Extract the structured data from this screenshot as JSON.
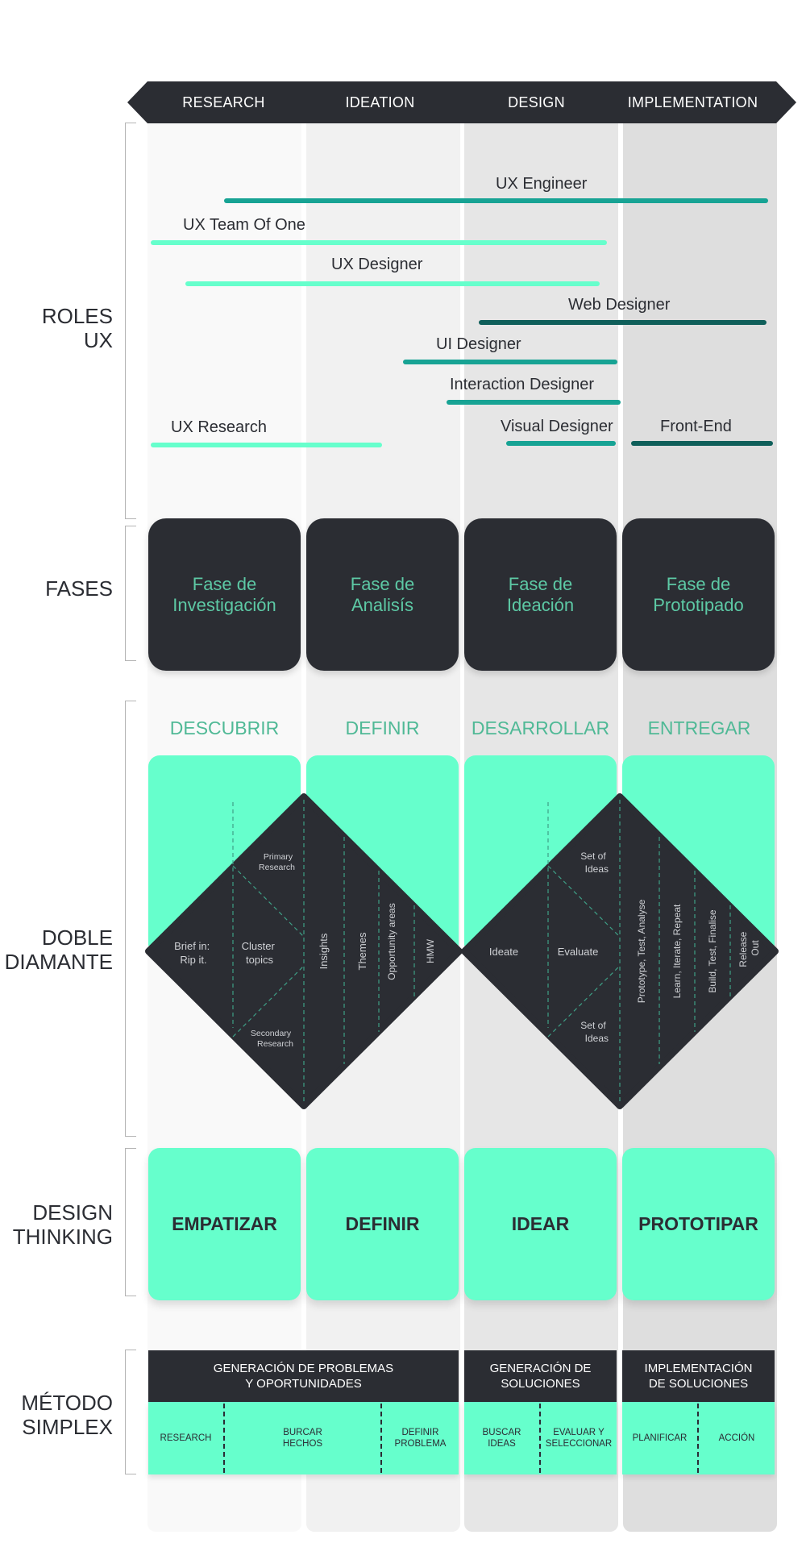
{
  "phases": [
    "RESEARCH",
    "IDEATION",
    "DESIGN",
    "IMPLEMENTATION"
  ],
  "sections": {
    "roles": [
      "ROLES",
      "UX"
    ],
    "fases": [
      "FASES"
    ],
    "doble": [
      "DOBLE",
      "DIAMANTE"
    ],
    "design": [
      "DESIGN",
      "THINKING"
    ],
    "metodo": [
      "MÉTODO",
      "SIMPLEX"
    ]
  },
  "roles": [
    {
      "label": "UX Engineer",
      "color": "#17a394"
    },
    {
      "label": "UX Team Of One",
      "color": "#66ffcc"
    },
    {
      "label": "UX Designer",
      "color": "#66ffcc"
    },
    {
      "label": "Web Designer",
      "color": "#0f5f5a"
    },
    {
      "label": "UI Designer",
      "color": "#17a394"
    },
    {
      "label": "Interaction Designer",
      "color": "#17a394"
    },
    {
      "label": "UX Research",
      "color": "#66ffcc"
    },
    {
      "label": "Visual Designer",
      "color": "#17a394"
    },
    {
      "label": "Front-End",
      "color": "#0f5f5a"
    }
  ],
  "fases": [
    [
      "Fase de",
      "Investigación"
    ],
    [
      "Fase de",
      "Analisís"
    ],
    [
      "Fase de",
      "Ideación"
    ],
    [
      "Fase de",
      "Prototipado"
    ]
  ],
  "doble_diamante": {
    "headings": [
      "DESCUBRIR",
      "DEFINIR",
      "DESARROLLAR",
      "ENTREGAR"
    ],
    "left": {
      "brief": [
        "Brief in:",
        "Rip it."
      ],
      "cluster": [
        "Cluster",
        "topics"
      ],
      "primary": [
        "Primary",
        "Research"
      ],
      "secondary": [
        "Secondary",
        "Research"
      ],
      "vertical": [
        "Insights",
        "Themes",
        "Opportunity areas",
        "HMW"
      ]
    },
    "right": {
      "ideate": "Ideate",
      "evaluate": "Evaluate",
      "set_top": [
        "Set of",
        "Ideas"
      ],
      "set_bottom": [
        "Set of",
        "Ideas"
      ],
      "vertical": [
        "Prototype, Test, Analyse",
        "Learn, Iterate, Repeat",
        "Build, Test, Finalise",
        "Release Out"
      ]
    }
  },
  "design_thinking": [
    "EMPATIZAR",
    "DEFINIR",
    "IDEAR",
    "PROTOTIPAR"
  ],
  "metodo_simplex": {
    "headers": [
      [
        "GENERACIÓN DE PROBLEMAS",
        "Y OPORTUNIDADES"
      ],
      [
        "GENERACIÓN DE",
        "SOLUCIONES"
      ],
      [
        "IMPLEMENTACIÓN",
        "DE SOLUCIONES"
      ]
    ],
    "steps": [
      [
        "RESEARCH"
      ],
      [
        "BURCAR",
        "HECHOS"
      ],
      [
        "DEFINIR",
        "PROBLEMA"
      ],
      [
        "BUSCAR",
        "IDEAS"
      ],
      [
        "EVALUAR Y",
        "SELECCIONAR"
      ],
      [
        "PLANIFICAR"
      ],
      [
        "ACCIÓN"
      ]
    ]
  },
  "colors": {
    "dark": "#2b2d33",
    "mint": "#66ffcc",
    "teal": "#17a394",
    "dark_teal": "#0f5f5a",
    "heading_green": "#50b996",
    "col_bg": [
      "#f9f9f9",
      "#f1f1f1",
      "#e6e6e6",
      "#dedede"
    ]
  }
}
